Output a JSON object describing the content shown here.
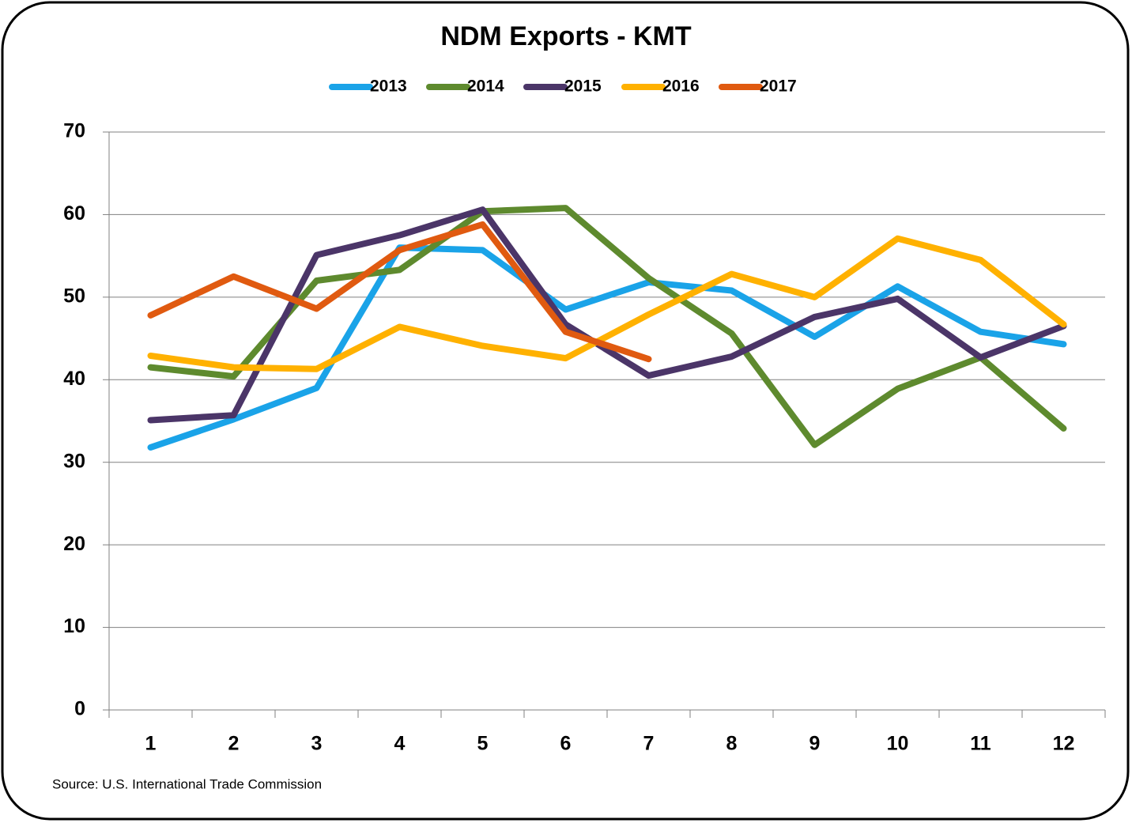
{
  "chart_data": {
    "type": "line",
    "title": "NDM Exports - KMT",
    "source": "Source: U.S. International Trade Commission",
    "categories": [
      "1",
      "2",
      "3",
      "4",
      "5",
      "6",
      "7",
      "8",
      "9",
      "10",
      "11",
      "12"
    ],
    "series": [
      {
        "name": "2013",
        "color": "#1aa3e8",
        "values": [
          31.8,
          35.2,
          39.0,
          56.0,
          55.7,
          48.5,
          51.8,
          50.8,
          45.2,
          51.3,
          45.8,
          44.3
        ]
      },
      {
        "name": "2014",
        "color": "#5e8a2e",
        "values": [
          41.5,
          40.4,
          52.0,
          53.3,
          60.4,
          60.8,
          52.3,
          45.6,
          32.1,
          38.9,
          42.7,
          34.1
        ]
      },
      {
        "name": "2015",
        "color": "#4b3568",
        "values": [
          35.1,
          35.7,
          55.1,
          57.5,
          60.6,
          46.7,
          40.5,
          42.8,
          47.6,
          49.8,
          42.7,
          46.5
        ]
      },
      {
        "name": "2016",
        "color": "#ffb100",
        "values": [
          42.9,
          41.5,
          41.3,
          46.4,
          44.1,
          42.6,
          47.9,
          52.8,
          50.0,
          57.1,
          54.5,
          46.7
        ]
      },
      {
        "name": "2017",
        "color": "#e05a10",
        "values": [
          47.8,
          52.5,
          48.6,
          55.7,
          58.8,
          45.8,
          42.5,
          null,
          null,
          null,
          null,
          null
        ]
      }
    ],
    "ylim": [
      0,
      70
    ],
    "yticks": [
      0,
      10,
      20,
      30,
      40,
      50,
      60,
      70
    ],
    "grid": true,
    "legend": "top"
  }
}
